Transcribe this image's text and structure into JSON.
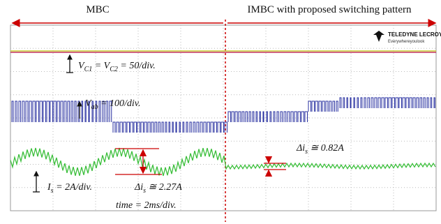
{
  "header": {
    "left": "MBC",
    "right": "IMBC with proposed switching pattern"
  },
  "logo": {
    "brand": "TELEDYNE LECROY",
    "tagline": "Everywhereyoulook"
  },
  "labels": {
    "vc": [
      {
        "text": "V"
      },
      {
        "text": "C1",
        "sub": true
      },
      {
        "text": " = V"
      },
      {
        "text": "C2",
        "sub": true
      },
      {
        "text": " = 50/div."
      }
    ],
    "vab": [
      {
        "text": "V"
      },
      {
        "text": "ab",
        "sub": true
      },
      {
        "text": " = 100/div."
      }
    ],
    "is": [
      {
        "text": "I"
      },
      {
        "text": "s",
        "sub": true
      },
      {
        "text": " = 2A/div."
      }
    ],
    "delta_mbc": [
      {
        "text": "Δi"
      },
      {
        "text": "s",
        "sub": true
      },
      {
        "text": " ≅ 2.27A"
      }
    ],
    "delta_imbc": [
      {
        "text": "Δi"
      },
      {
        "text": "s",
        "sub": true
      },
      {
        "text": " ≅ 0.82A"
      }
    ],
    "time": [
      {
        "text": "time = 2ms/div."
      }
    ]
  }
}
